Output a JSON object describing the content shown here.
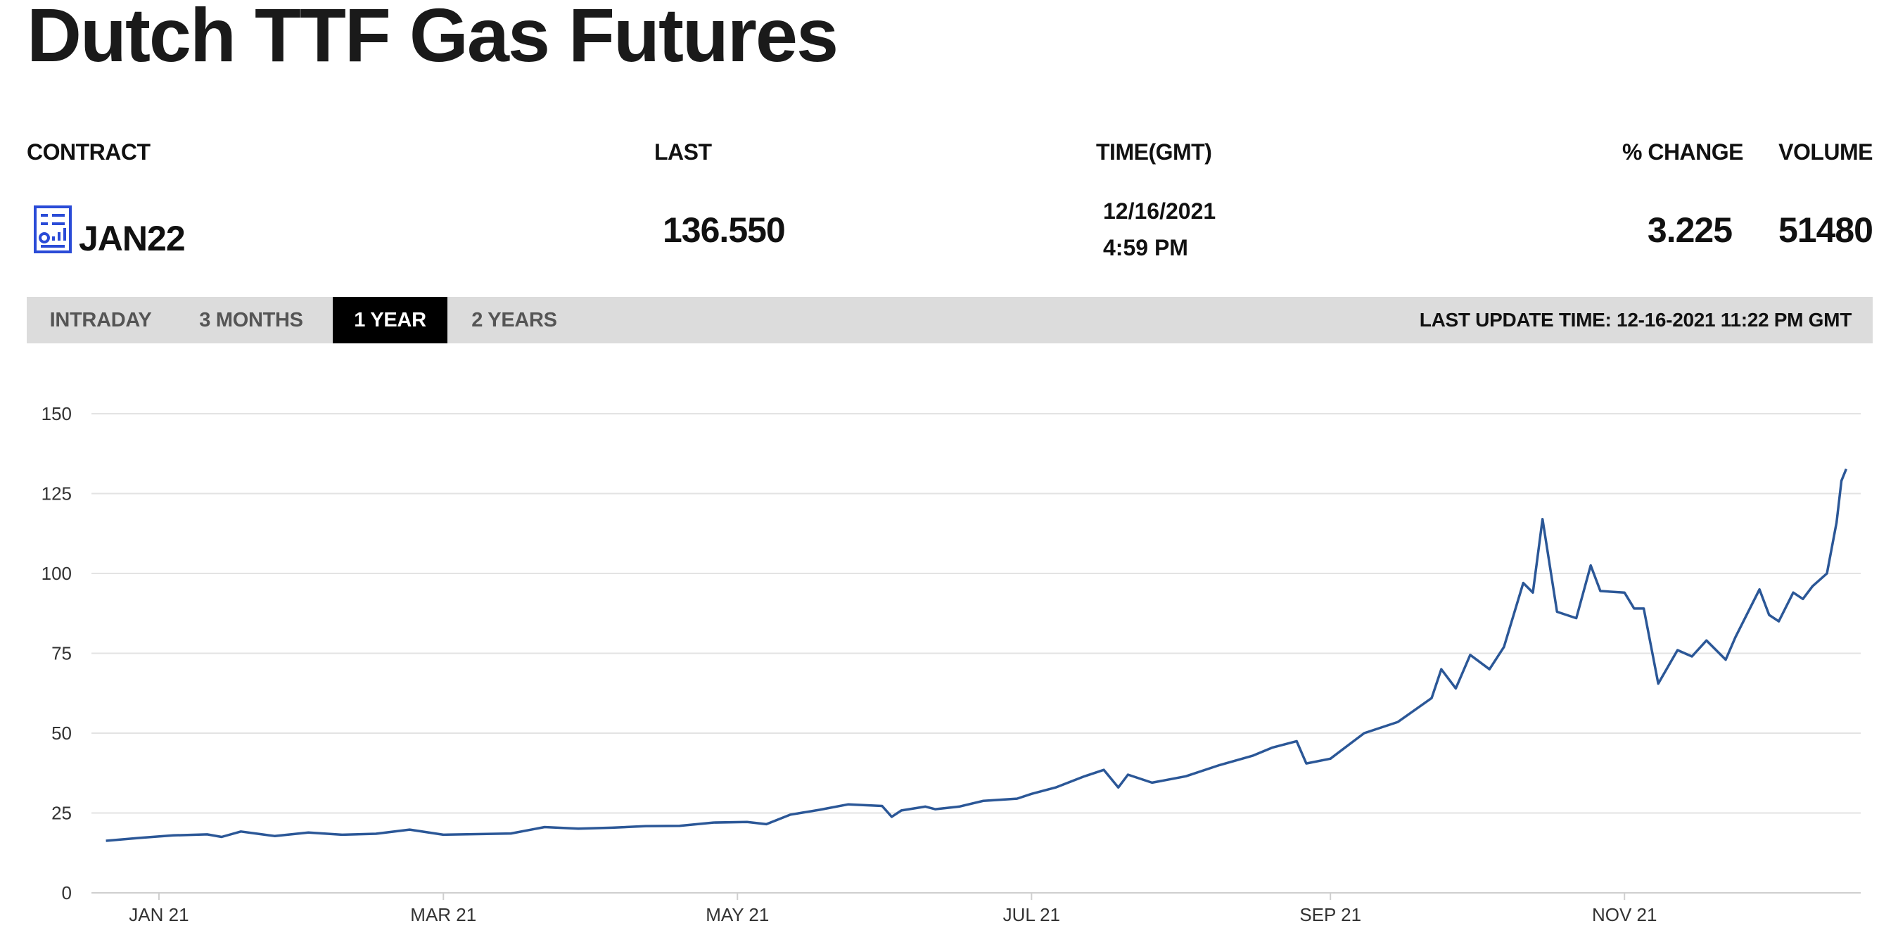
{
  "page": {
    "title": "Dutch TTF Gas Futures"
  },
  "table": {
    "headers": {
      "contract": "CONTRACT",
      "last": "LAST",
      "time": "TIME(GMT)",
      "pct_change": "% CHANGE",
      "volume": "VOLUME"
    },
    "row": {
      "contract": "JAN22",
      "last": "136.550",
      "date": "12/16/2021",
      "time": "4:59 PM",
      "pct_change": "3.225",
      "volume": "51480"
    },
    "contract_icon": "report-icon"
  },
  "tabs": [
    {
      "label": "INTRADAY",
      "active": false
    },
    {
      "label": "3 MONTHS",
      "active": false
    },
    {
      "label": "1 YEAR",
      "active": true
    },
    {
      "label": "2 YEARS",
      "active": false
    }
  ],
  "last_update": "LAST UPDATE TIME: 12-16-2021 11:22 PM GMT",
  "colors": {
    "line": "#2b5797",
    "grid": "#e3e3e3",
    "active_tab": "#000000",
    "tabbar": "#dcdcdc",
    "icon": "#2a4bd7"
  },
  "chart_data": {
    "type": "line",
    "title": "",
    "xlabel": "",
    "ylabel": "",
    "ylim": [
      0,
      150
    ],
    "yticks": [
      0,
      25,
      50,
      75,
      100,
      125,
      150
    ],
    "xlim": [
      "2020-12-18",
      "2021-12-20"
    ],
    "xticks": [
      {
        "date": "2021-01-01",
        "label": "JAN 21"
      },
      {
        "date": "2021-03-01",
        "label": "MAR 21"
      },
      {
        "date": "2021-05-01",
        "label": "MAY 21"
      },
      {
        "date": "2021-07-01",
        "label": "JUL 21"
      },
      {
        "date": "2021-09-01",
        "label": "SEP 21"
      },
      {
        "date": "2021-11-01",
        "label": "NOV 21"
      }
    ],
    "grid": true,
    "legend": "none",
    "series": [
      {
        "points": [
          [
            "2020-12-21",
            16.3
          ],
          [
            "2020-12-28",
            17.2
          ],
          [
            "2021-01-04",
            18.0
          ],
          [
            "2021-01-11",
            18.3
          ],
          [
            "2021-01-14",
            17.5
          ],
          [
            "2021-01-18",
            19.2
          ],
          [
            "2021-01-22",
            18.4
          ],
          [
            "2021-01-25",
            17.8
          ],
          [
            "2021-02-01",
            18.9
          ],
          [
            "2021-02-08",
            18.2
          ],
          [
            "2021-02-15",
            18.5
          ],
          [
            "2021-02-22",
            19.8
          ],
          [
            "2021-03-01",
            18.2
          ],
          [
            "2021-03-08",
            18.4
          ],
          [
            "2021-03-15",
            18.6
          ],
          [
            "2021-03-22",
            20.6
          ],
          [
            "2021-03-29",
            20.1
          ],
          [
            "2021-04-05",
            20.4
          ],
          [
            "2021-04-12",
            20.9
          ],
          [
            "2021-04-19",
            21.0
          ],
          [
            "2021-04-26",
            22.0
          ],
          [
            "2021-05-03",
            22.2
          ],
          [
            "2021-05-07",
            21.5
          ],
          [
            "2021-05-12",
            24.5
          ],
          [
            "2021-05-18",
            26.0
          ],
          [
            "2021-05-24",
            27.7
          ],
          [
            "2021-05-31",
            27.2
          ],
          [
            "2021-06-02",
            23.8
          ],
          [
            "2021-06-04",
            25.8
          ],
          [
            "2021-06-09",
            27.0
          ],
          [
            "2021-06-11",
            26.2
          ],
          [
            "2021-06-16",
            27.0
          ],
          [
            "2021-06-21",
            28.8
          ],
          [
            "2021-06-28",
            29.5
          ],
          [
            "2021-07-01",
            31.0
          ],
          [
            "2021-07-06",
            33.0
          ],
          [
            "2021-07-12",
            36.5
          ],
          [
            "2021-07-16",
            38.5
          ],
          [
            "2021-07-19",
            33.0
          ],
          [
            "2021-07-21",
            37.0
          ],
          [
            "2021-07-26",
            34.5
          ],
          [
            "2021-08-02",
            36.5
          ],
          [
            "2021-08-09",
            40.0
          ],
          [
            "2021-08-16",
            43.0
          ],
          [
            "2021-08-20",
            45.5
          ],
          [
            "2021-08-25",
            47.5
          ],
          [
            "2021-08-27",
            40.5
          ],
          [
            "2021-09-01",
            42.0
          ],
          [
            "2021-09-08",
            50.0
          ],
          [
            "2021-09-15",
            53.5
          ],
          [
            "2021-09-22",
            61.0
          ],
          [
            "2021-09-24",
            70.0
          ],
          [
            "2021-09-27",
            64.0
          ],
          [
            "2021-09-30",
            74.5
          ],
          [
            "2021-10-04",
            70.0
          ],
          [
            "2021-10-07",
            77.0
          ],
          [
            "2021-10-11",
            97.0
          ],
          [
            "2021-10-13",
            94.0
          ],
          [
            "2021-10-15",
            117.0
          ],
          [
            "2021-10-18",
            88.0
          ],
          [
            "2021-10-22",
            86.0
          ],
          [
            "2021-10-25",
            102.5
          ],
          [
            "2021-10-27",
            94.5
          ],
          [
            "2021-11-01",
            94.0
          ],
          [
            "2021-11-03",
            89.0
          ],
          [
            "2021-11-05",
            89.0
          ],
          [
            "2021-11-08",
            65.5
          ],
          [
            "2021-11-12",
            76.0
          ],
          [
            "2021-11-15",
            74.0
          ],
          [
            "2021-11-18",
            79.0
          ],
          [
            "2021-11-22",
            73.0
          ],
          [
            "2021-11-24",
            80.0
          ],
          [
            "2021-11-29",
            95.0
          ],
          [
            "2021-12-01",
            87.0
          ],
          [
            "2021-12-03",
            85.0
          ],
          [
            "2021-12-06",
            94.0
          ],
          [
            "2021-12-08",
            92.0
          ],
          [
            "2021-12-10",
            96.0
          ],
          [
            "2021-12-13",
            100.0
          ],
          [
            "2021-12-15",
            116.0
          ],
          [
            "2021-12-16",
            129.0
          ],
          [
            "2021-12-17",
            132.7
          ]
        ]
      }
    ]
  }
}
